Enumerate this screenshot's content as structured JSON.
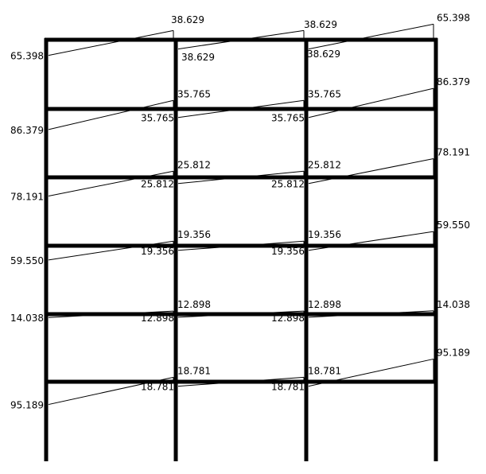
{
  "diagram": {
    "line_color": "#000000",
    "background": "#ffffff",
    "bays": 3,
    "stories": 6,
    "floors": [
      {
        "values": [
          "65.398",
          "38.629",
          "38.629",
          "38.629",
          "38.629",
          "65.398"
        ]
      },
      {
        "values": [
          "86.379",
          "35.765",
          "35.765",
          "35.765",
          "35.765",
          "86.379"
        ]
      },
      {
        "values": [
          "78.191",
          "25.812",
          "25.812",
          "25.812",
          "25.812",
          "78.191"
        ]
      },
      {
        "values": [
          "59.550",
          "19.356",
          "19.356",
          "19.356",
          "19.356",
          "59.550"
        ]
      },
      {
        "values": [
          "14.038",
          "12.898",
          "12.898",
          "12.898",
          "12.898",
          "14.038"
        ]
      },
      {
        "values": [
          "95.189",
          "18.781",
          "18.781",
          "18.781",
          "18.781",
          "95.189"
        ]
      }
    ]
  }
}
